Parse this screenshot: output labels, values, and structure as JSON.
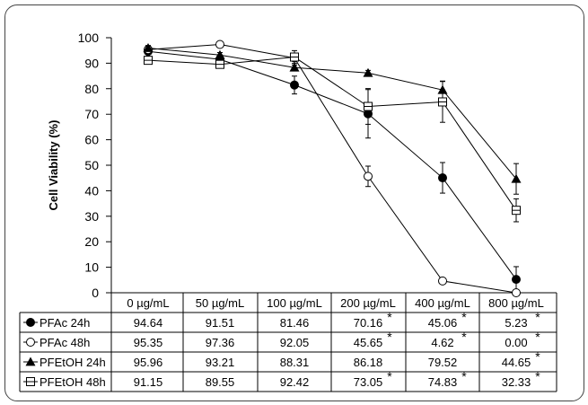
{
  "chart_data": {
    "type": "line",
    "ylabel": "Cell Viability (%)",
    "xlabel": "",
    "ylim": [
      0,
      100
    ],
    "yticks": [
      0,
      10,
      20,
      30,
      40,
      50,
      60,
      70,
      80,
      90,
      100
    ],
    "grid": false,
    "legend": "table-rows",
    "categories": [
      "0 µg/mL",
      "50 µg/mL",
      "100 µg/mL",
      "200 µg/mL",
      "400 µg/mL",
      "800 µg/mL"
    ],
    "series": [
      {
        "name": "PFAc 24h",
        "marker": "filled-circle",
        "values": [
          94.64,
          91.51,
          81.46,
          70.16,
          45.06,
          5.23
        ],
        "labels": [
          "94.64",
          "91.51",
          "81.46",
          "70.16",
          "45.06",
          "5.23"
        ],
        "significant": [
          false,
          false,
          false,
          true,
          true,
          true
        ],
        "errors": [
          2,
          1,
          3.5,
          9.5,
          6,
          5
        ]
      },
      {
        "name": "PFAc 48h",
        "marker": "open-circle",
        "values": [
          95.35,
          97.36,
          92.05,
          45.65,
          4.62,
          0.0
        ],
        "labels": [
          "95.35",
          "97.36",
          "92.05",
          "45.65",
          "4.62",
          "0.00"
        ],
        "significant": [
          false,
          false,
          false,
          true,
          true,
          true
        ],
        "errors": [
          1,
          1,
          1,
          4,
          0.5,
          0.3
        ]
      },
      {
        "name": "PFEtOH 24h",
        "marker": "filled-triangle",
        "values": [
          95.96,
          93.21,
          88.31,
          86.18,
          79.52,
          44.65
        ],
        "labels": [
          "95.96",
          "93.21",
          "88.31",
          "86.18",
          "79.52",
          "44.65"
        ],
        "significant": [
          false,
          false,
          false,
          false,
          false,
          true
        ],
        "errors": [
          1,
          1,
          1,
          1,
          3.5,
          6
        ]
      },
      {
        "name": "PFEtOH 48h",
        "marker": "open-square",
        "values": [
          91.15,
          89.55,
          92.42,
          73.05,
          74.83,
          32.33
        ],
        "labels": [
          "91.15",
          "89.55",
          "92.42",
          "73.05",
          "74.83",
          "32.33"
        ],
        "significant": [
          false,
          false,
          false,
          true,
          true,
          true
        ],
        "errors": [
          1.5,
          1,
          2.5,
          7,
          8,
          4.5
        ]
      }
    ],
    "significance_marker": "*"
  }
}
